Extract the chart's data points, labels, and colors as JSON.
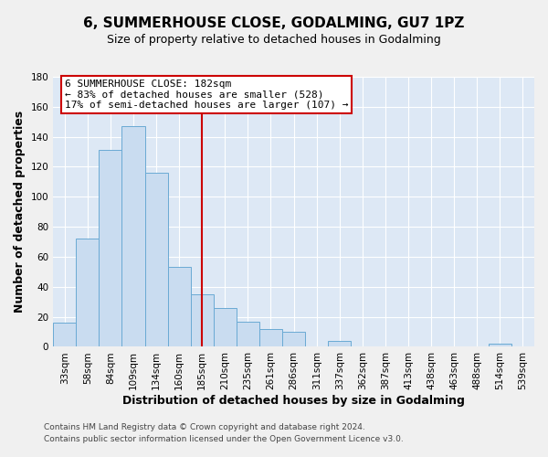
{
  "title": "6, SUMMERHOUSE CLOSE, GODALMING, GU7 1PZ",
  "subtitle": "Size of property relative to detached houses in Godalming",
  "xlabel": "Distribution of detached houses by size in Godalming",
  "ylabel": "Number of detached properties",
  "bar_labels": [
    "33sqm",
    "58sqm",
    "84sqm",
    "109sqm",
    "134sqm",
    "160sqm",
    "185sqm",
    "210sqm",
    "235sqm",
    "261sqm",
    "286sqm",
    "311sqm",
    "337sqm",
    "362sqm",
    "387sqm",
    "413sqm",
    "438sqm",
    "463sqm",
    "488sqm",
    "514sqm",
    "539sqm"
  ],
  "bar_heights": [
    16,
    72,
    131,
    147,
    116,
    53,
    35,
    26,
    17,
    12,
    10,
    0,
    4,
    0,
    0,
    0,
    0,
    0,
    0,
    2,
    0
  ],
  "bar_color": "#c9dcf0",
  "bar_edge_color": "#6aaad4",
  "bar_width": 1.0,
  "ylim": [
    0,
    180
  ],
  "yticks": [
    0,
    20,
    40,
    60,
    80,
    100,
    120,
    140,
    160,
    180
  ],
  "vline_x_index": 6,
  "vline_color": "#cc0000",
  "annotation_line1": "6 SUMMERHOUSE CLOSE: 182sqm",
  "annotation_line2": "← 83% of detached houses are smaller (528)",
  "annotation_line3": "17% of semi-detached houses are larger (107) →",
  "annotation_box_color": "#ffffff",
  "annotation_box_edge_color": "#cc0000",
  "footer_line1": "Contains HM Land Registry data © Crown copyright and database right 2024.",
  "footer_line2": "Contains public sector information licensed under the Open Government Licence v3.0.",
  "fig_bg_color": "#f0f0f0",
  "plot_bg_color": "#dde8f5",
  "grid_color": "#ffffff",
  "title_fontsize": 11,
  "subtitle_fontsize": 9,
  "axis_label_fontsize": 9,
  "tick_fontsize": 7.5,
  "annotation_fontsize": 8,
  "footer_fontsize": 6.5
}
